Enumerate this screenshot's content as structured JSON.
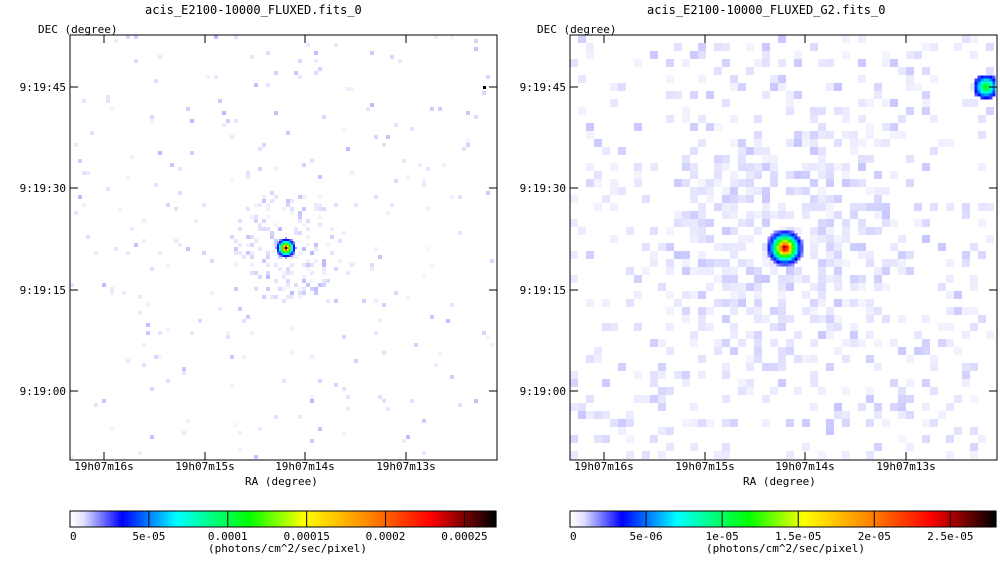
{
  "chart_data": [
    {
      "type": "heatmap",
      "title": "acis_E2100-10000_FLUXED.fits_0",
      "xlabel": "RA (degree)",
      "ylabel": "DEC (degree)",
      "x_ticks": [
        "19h07m16s",
        "19h07m15s",
        "19h07m14s",
        "19h07m13s"
      ],
      "y_ticks": [
        "9:19:45",
        "9:19:30",
        "9:19:15",
        "9:19:00"
      ],
      "source": {
        "ra": "19h07m14.3s",
        "dec": "9:19:21"
      },
      "colorbar": {
        "label": "(photons/cm^2/sec/pixel)",
        "min": 0,
        "max": 0.00027,
        "tick_values": [
          0,
          5e-05,
          0.0001,
          0.00015,
          0.0002,
          0.00025
        ],
        "tick_labels": [
          "0",
          "5e-05",
          "0.0001",
          "0.00015",
          "0.0002",
          "0.00025"
        ]
      },
      "grid": false
    },
    {
      "type": "heatmap",
      "title": "acis_E2100-10000_FLUXED_G2.fits_0",
      "xlabel": "RA (degree)",
      "ylabel": "DEC (degree)",
      "x_ticks": [
        "19h07m16s",
        "19h07m15s",
        "19h07m14s",
        "19h07m13s"
      ],
      "y_ticks": [
        "9:19:45",
        "9:19:30",
        "9:19:15",
        "9:19:00"
      ],
      "source": {
        "ra": "19h07m14.3s",
        "dec": "9:19:21"
      },
      "colorbar": {
        "label": "(photons/cm^2/sec/pixel)",
        "min": 0,
        "max": 2.8e-05,
        "tick_values": [
          0,
          5e-06,
          1e-05,
          1.5e-05,
          2e-05,
          2.5e-05
        ],
        "tick_labels": [
          "0",
          "5e-06",
          "1e-05",
          "1.5e-05",
          "2e-05",
          "2.5e-05"
        ]
      },
      "grid": false
    }
  ],
  "colors": {
    "colormap": [
      "#ffffff",
      "#e0e0ff",
      "#0000ff",
      "#00ffff",
      "#00ff00",
      "#ffff00",
      "#ff8800",
      "#ff0000",
      "#000000"
    ]
  }
}
